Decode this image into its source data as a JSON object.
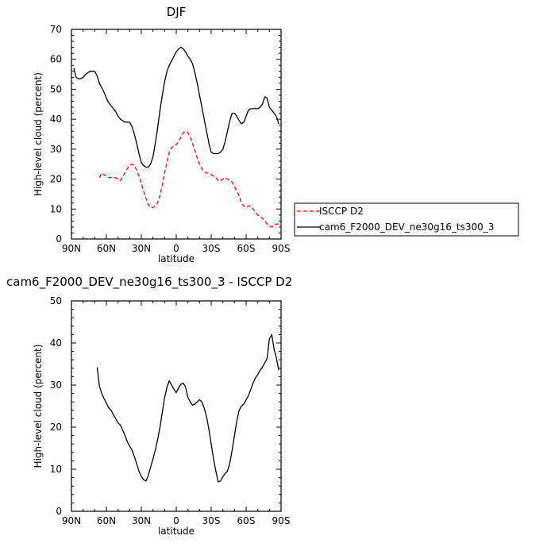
{
  "chart_data": [
    {
      "type": "line",
      "title": "DJF",
      "xlabel": "latitude",
      "ylabel": "High-level cloud (percent)",
      "xlim": [
        90,
        -90
      ],
      "ylim": [
        0,
        70
      ],
      "xticks": [
        "90N",
        "60N",
        "30N",
        "0",
        "30S",
        "60S",
        "90S"
      ],
      "yticks": [
        "0",
        "10",
        "20",
        "30",
        "40",
        "50",
        "60",
        "70"
      ],
      "grid": false,
      "legend_placement": "right",
      "series": [
        {
          "name": "ISCCP D2",
          "color": "#ff0000",
          "dash": true,
          "x": [
            66,
            64,
            62,
            58,
            56,
            54,
            52,
            50,
            48,
            45,
            42,
            40,
            38,
            36,
            34,
            32,
            30,
            28,
            26,
            24,
            22,
            20,
            18,
            16,
            14,
            12,
            10,
            8,
            6,
            4,
            2,
            0,
            -2,
            -4,
            -6,
            -8,
            -10,
            -12,
            -14,
            -16,
            -18,
            -20,
            -22,
            -24,
            -26,
            -28,
            -30,
            -32,
            -34,
            -36,
            -38,
            -40,
            -42,
            -44,
            -46,
            -48,
            -50,
            -52,
            -54,
            -56,
            -58,
            -60,
            -62,
            -64,
            -66,
            -68,
            -70,
            -72,
            -74,
            -76,
            -78,
            -80,
            -82,
            -84,
            -86,
            -88
          ],
          "y": [
            20.5,
            22,
            21.5,
            20.5,
            20.5,
            20.5,
            20.5,
            20,
            19.5,
            21.5,
            23.5,
            24.5,
            25,
            24.5,
            23,
            21,
            18.5,
            16,
            13.5,
            11.5,
            10.5,
            10.5,
            11,
            12,
            14.5,
            18,
            22,
            25.5,
            29,
            30.5,
            31,
            31.5,
            32.5,
            34,
            35.5,
            36,
            35.5,
            34,
            32,
            29.5,
            27,
            25,
            23.5,
            22.5,
            22,
            22,
            21.5,
            21,
            20.5,
            19.5,
            19.5,
            20,
            20.5,
            20,
            19.5,
            19,
            17.5,
            16,
            14.5,
            12,
            11,
            10.5,
            11,
            11,
            10,
            9,
            8,
            7.5,
            7,
            6,
            5,
            4.5,
            4,
            4.5,
            5,
            5
          ]
        },
        {
          "name": "cam6_F2000_DEV_ne30g16_ts300_3",
          "color": "#000000",
          "dash": false,
          "x": [
            88,
            86,
            84,
            82,
            80,
            78,
            76,
            74,
            72,
            70,
            68,
            66,
            64,
            62,
            60,
            58,
            56,
            54,
            52,
            50,
            48,
            46,
            44,
            42,
            40,
            38,
            36,
            34,
            32,
            30,
            28,
            26,
            24,
            22,
            20,
            18,
            16,
            14,
            12,
            10,
            8,
            6,
            4,
            2,
            0,
            -2,
            -4,
            -6,
            -8,
            -10,
            -12,
            -14,
            -16,
            -18,
            -20,
            -22,
            -24,
            -26,
            -28,
            -30,
            -32,
            -34,
            -36,
            -38,
            -40,
            -42,
            -44,
            -46,
            -48,
            -50,
            -52,
            -54,
            -56,
            -58,
            -60,
            -62,
            -64,
            -66,
            -68,
            -70,
            -72,
            -74,
            -76,
            -78,
            -80,
            -82,
            -84,
            -86,
            -88
          ],
          "y": [
            57,
            54,
            53.5,
            53.5,
            54,
            55,
            55.5,
            56,
            56,
            56,
            54.5,
            52,
            50.5,
            49,
            47,
            45.5,
            44.5,
            43.5,
            42.5,
            41,
            40,
            39.5,
            39,
            39,
            39,
            37.5,
            35,
            32,
            28.5,
            25.5,
            24.5,
            24,
            24,
            25,
            27.5,
            32,
            37,
            43,
            48,
            52.5,
            56,
            58,
            59.5,
            61,
            62.5,
            63.5,
            64,
            63.5,
            62.5,
            61,
            60,
            58.5,
            55.5,
            52,
            48,
            44,
            40,
            36,
            32,
            29,
            28.5,
            28.5,
            28.5,
            29,
            30,
            32.5,
            36,
            39.5,
            42,
            42,
            41,
            39.5,
            38.5,
            39,
            41,
            43,
            43.5,
            43.5,
            43.5,
            43.5,
            44,
            45,
            47.5,
            47,
            44,
            43,
            42,
            41,
            38.5
          ]
        }
      ]
    },
    {
      "type": "line",
      "title": "cam6_F2000_DEV_ne30g16_ts300_3 - ISCCP D2",
      "xlabel": "latitude",
      "ylabel": "High-level cloud (percent)",
      "xlim": [
        90,
        -90
      ],
      "ylim": [
        0,
        50
      ],
      "xticks": [
        "90N",
        "60N",
        "30N",
        "0",
        "30S",
        "60S",
        "90S"
      ],
      "yticks": [
        "0",
        "10",
        "20",
        "30",
        "40",
        "50"
      ],
      "grid": false,
      "series": [
        {
          "color": "#000000",
          "dash": false,
          "x": [
            68,
            66,
            64,
            62,
            60,
            58,
            56,
            54,
            52,
            50,
            48,
            46,
            44,
            42,
            40,
            38,
            36,
            34,
            32,
            30,
            28,
            26,
            24,
            22,
            20,
            18,
            16,
            14,
            12,
            10,
            8,
            6,
            4,
            2,
            0,
            -2,
            -4,
            -6,
            -8,
            -10,
            -12,
            -14,
            -16,
            -18,
            -20,
            -22,
            -24,
            -26,
            -28,
            -30,
            -32,
            -34,
            -36,
            -38,
            -40,
            -42,
            -44,
            -46,
            -48,
            -50,
            -52,
            -54,
            -56,
            -58,
            -60,
            -62,
            -64,
            -66,
            -68,
            -70,
            -72,
            -74,
            -76,
            -78,
            -80,
            -82,
            -84,
            -86,
            -88
          ],
          "y": [
            34.2,
            29.8,
            28,
            26.8,
            25.7,
            24.6,
            24,
            23,
            22,
            21,
            20.5,
            19.3,
            18,
            16.5,
            15.5,
            14.5,
            13,
            11.3,
            9.5,
            8.3,
            7.5,
            7.2,
            8.5,
            10.5,
            12.5,
            14.5,
            17,
            20,
            23.5,
            27,
            29.5,
            31,
            30,
            29,
            28.2,
            29.3,
            30.2,
            30.5,
            29.5,
            27,
            26,
            25.2,
            25.5,
            26,
            26.5,
            26,
            24.5,
            22.5,
            19.5,
            16,
            12.5,
            9.5,
            7,
            7.2,
            8.2,
            9,
            9.5,
            11.5,
            14.5,
            18,
            21.5,
            24,
            25,
            25.5,
            26.5,
            27.5,
            29,
            30.5,
            31.7,
            32.5,
            33.5,
            34.2,
            35.3,
            36.3,
            41,
            42,
            38.5,
            36.5,
            33.5
          ]
        }
      ]
    }
  ]
}
